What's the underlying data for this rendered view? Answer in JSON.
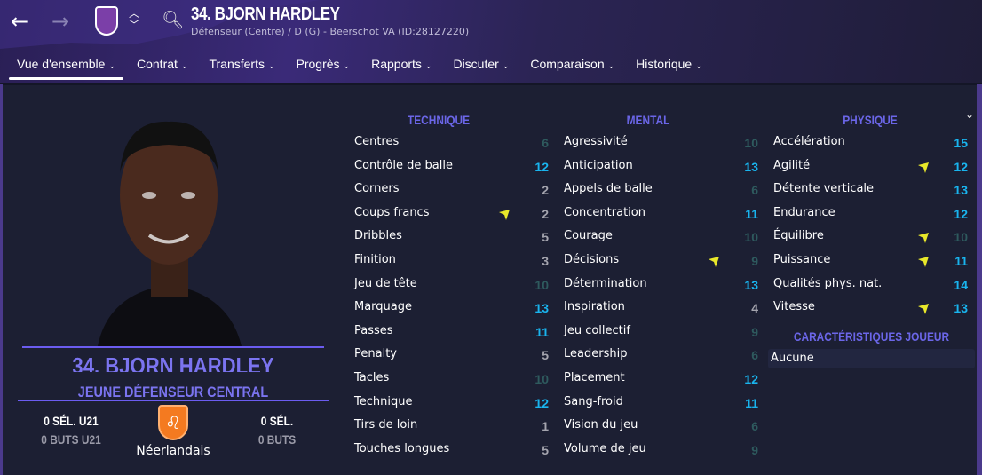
{
  "header": {
    "title": "34. BJORN HARDLEY",
    "subtitle": "Défenseur (Centre) / D (G) - Beerschot VA (ID:28127220)",
    "back_icon": "arrow-left-icon",
    "forward_icon": "arrow-right-icon",
    "crest": "beerschot-crest",
    "search_icon": "search-icon"
  },
  "tabs": [
    {
      "label": "Vue d'ensemble",
      "active": true
    },
    {
      "label": "Contrat"
    },
    {
      "label": "Transferts"
    },
    {
      "label": "Progrès"
    },
    {
      "label": "Rapports"
    },
    {
      "label": "Discuter"
    },
    {
      "label": "Comparaison"
    },
    {
      "label": "Historique"
    }
  ],
  "profile": {
    "name": "34. BJORN HARDLEY",
    "role": "JEUNE DÉFENSEUR CENTRAL",
    "u21_caps": "0 SÉL. U21",
    "u21_goals": "0 BUTS U21",
    "caps": "0 SÉL.",
    "goals": "0 BUTS",
    "nationality": "Néerlandais",
    "flag": "netherlands-knvb-crest"
  },
  "colors": {
    "high": "#19b4ee",
    "mid": "#2e5a5e",
    "low": "#a4a4ae",
    "arrow": "#e8e82a",
    "heading": "#6b66e8"
  },
  "sections": [
    {
      "title": "TECHNIQUE",
      "attrs": [
        [
          "Centres",
          6
        ],
        [
          "Contrôle de balle",
          12
        ],
        [
          "Corners",
          2
        ],
        [
          "Coups francs",
          2,
          true
        ],
        [
          "Dribbles",
          5
        ],
        [
          "Finition",
          3
        ],
        [
          "Jeu de tête",
          10
        ],
        [
          "Marquage",
          13
        ],
        [
          "Passes",
          11
        ],
        [
          "Penalty",
          5
        ],
        [
          "Tacles",
          10
        ],
        [
          "Technique",
          12
        ],
        [
          "Tirs de loin",
          1
        ],
        [
          "Touches longues",
          5
        ]
      ]
    },
    {
      "title": "MENTAL",
      "attrs": [
        [
          "Agressivité",
          10
        ],
        [
          "Anticipation",
          13
        ],
        [
          "Appels de balle",
          6
        ],
        [
          "Concentration",
          11
        ],
        [
          "Courage",
          10
        ],
        [
          "Décisions",
          9,
          true
        ],
        [
          "Détermination",
          13
        ],
        [
          "Inspiration",
          4
        ],
        [
          "Jeu collectif",
          9
        ],
        [
          "Leadership",
          6
        ],
        [
          "Placement",
          12
        ],
        [
          "Sang-froid",
          11
        ],
        [
          "Vision du jeu",
          6
        ],
        [
          "Volume de jeu",
          9
        ]
      ]
    },
    {
      "title": "PHYSIQUE",
      "attrs": [
        [
          "Accélération",
          15
        ],
        [
          "Agilité",
          12,
          true
        ],
        [
          "Détente verticale",
          13
        ],
        [
          "Endurance",
          12
        ],
        [
          "Équilibre",
          10,
          true
        ],
        [
          "Puissance",
          11,
          true
        ],
        [
          "Qualités phys. nat.",
          14
        ],
        [
          "Vitesse",
          13,
          true
        ]
      ]
    }
  ],
  "traits": {
    "title": "CARACTÉRISTIQUES JOUEUR",
    "value": "Aucune"
  }
}
